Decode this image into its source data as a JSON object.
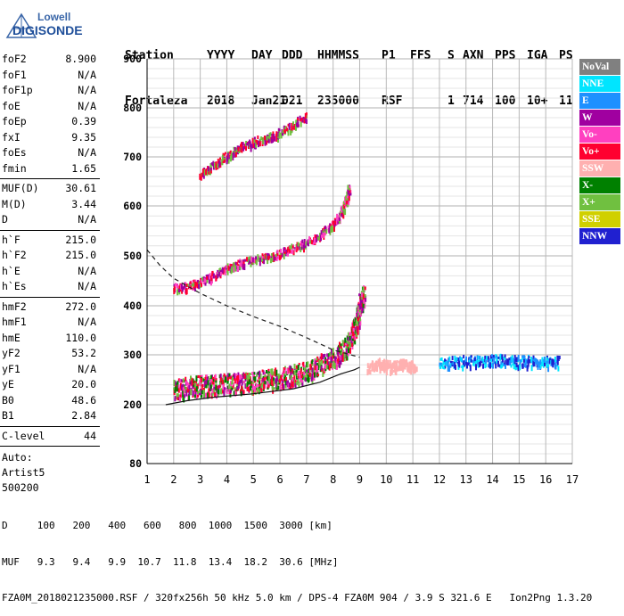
{
  "logo": {
    "line1": "Lowell",
    "line2": "DIGISONDE"
  },
  "header": {
    "row1": [
      "Station",
      "YYYY",
      "DAY",
      "DDD",
      "HHMMSS",
      "P1",
      "FFS",
      "S",
      "AXN",
      "PPS",
      "IGA",
      "PS"
    ],
    "row2": [
      "Fortaleza",
      "2018",
      "Jan21",
      "021",
      "235000",
      "RSF",
      "",
      "1",
      "714",
      "100",
      "10+",
      "11"
    ]
  },
  "params_group1": [
    {
      "label": "foF2",
      "value": "8.900"
    },
    {
      "label": "foF1",
      "value": "N/A"
    },
    {
      "label": "foF1p",
      "value": "N/A"
    },
    {
      "label": "foE",
      "value": "N/A"
    },
    {
      "label": "foEp",
      "value": "0.39"
    },
    {
      "label": "fxI",
      "value": "9.35"
    },
    {
      "label": "foEs",
      "value": "N/A"
    },
    {
      "label": "fmin",
      "value": "1.65"
    }
  ],
  "params_group2": [
    {
      "label": "MUF(D)",
      "value": "30.61"
    },
    {
      "label": "M(D)",
      "value": "3.44"
    },
    {
      "label": "D",
      "value": "N/A"
    }
  ],
  "params_group3": [
    {
      "label": "h`F",
      "value": "215.0"
    },
    {
      "label": "h`F2",
      "value": "215.0"
    },
    {
      "label": "h`E",
      "value": "N/A"
    },
    {
      "label": "h`Es",
      "value": "N/A"
    }
  ],
  "params_group4": [
    {
      "label": "hmF2",
      "value": "272.0"
    },
    {
      "label": "hmF1",
      "value": "N/A"
    },
    {
      "label": "hmE",
      "value": "110.0"
    },
    {
      "label": "yF2",
      "value": "53.2"
    },
    {
      "label": "yF1",
      "value": "N/A"
    },
    {
      "label": "yE",
      "value": "20.0"
    },
    {
      "label": "B0",
      "value": "48.6"
    },
    {
      "label": "B1",
      "value": "2.84"
    }
  ],
  "params_group5": [
    {
      "label": "C-level",
      "value": "44"
    }
  ],
  "auto": {
    "line1": "Auto:",
    "line2": "Artist5",
    "line3": "500200"
  },
  "legend": [
    {
      "label": "NoVal",
      "color": "#808080"
    },
    {
      "label": "NNE",
      "color": "#00e5ff"
    },
    {
      "label": "E",
      "color": "#1e90ff"
    },
    {
      "label": "W",
      "color": "#a000a0"
    },
    {
      "label": "Vo-",
      "color": "#ff40c0"
    },
    {
      "label": "Vo+",
      "color": "#ff0030"
    },
    {
      "label": "SSW",
      "color": "#ffb0b0"
    },
    {
      "label": "X-",
      "color": "#008000"
    },
    {
      "label": "X+",
      "color": "#70c040"
    },
    {
      "label": "SSE",
      "color": "#d0d000"
    },
    {
      "label": "NNW",
      "color": "#2020d0"
    }
  ],
  "footer": {
    "line1": "D     100   200   400   600   800  1000  1500  3000 [km]",
    "line2": "MUF   9.3   9.4   9.9  10.7  11.8  13.4  18.2  30.6 [MHz]",
    "line3": "FZA0M_2018021235000.RSF / 320fx256h 50 kHz 5.0 km / DPS-4 FZA0M 904 / 3.9 S 321.6 E   Ion2Png 1.3.20"
  },
  "chart_data": {
    "type": "scatter",
    "xlim": [
      1,
      17
    ],
    "ylim": [
      80,
      900
    ],
    "x_ticks": [
      "1",
      "2",
      "3",
      "4",
      "5",
      "6",
      "7",
      "8",
      "9",
      "10",
      "11",
      "12",
      "13",
      "14",
      "15",
      "16",
      "17"
    ],
    "y_ticks": [
      "80",
      "200",
      "300",
      "400",
      "500",
      "600",
      "700",
      "800",
      "900"
    ],
    "y_tick_values": [
      80,
      200,
      300,
      400,
      500,
      600,
      700,
      800,
      900
    ],
    "grid": true,
    "ionogram_series": [
      {
        "name": "F2 trace",
        "colors": [
          "#ff0030",
          "#ff40c0",
          "#a000a0",
          "#008000",
          "#70c040"
        ],
        "points": [
          [
            2.0,
            232
          ],
          [
            2.5,
            238
          ],
          [
            3.0,
            240
          ],
          [
            3.5,
            242
          ],
          [
            4.0,
            244
          ],
          [
            4.5,
            246
          ],
          [
            5.0,
            248
          ],
          [
            5.5,
            252
          ],
          [
            6.0,
            256
          ],
          [
            6.5,
            262
          ],
          [
            7.0,
            270
          ],
          [
            7.5,
            282
          ],
          [
            8.0,
            295
          ],
          [
            8.4,
            312
          ],
          [
            8.7,
            340
          ],
          [
            8.9,
            375
          ],
          [
            9.0,
            405
          ],
          [
            9.15,
            425
          ]
        ]
      },
      {
        "name": "2nd hop",
        "colors": [
          "#a000a0",
          "#ff40c0",
          "#70c040",
          "#ff0030"
        ],
        "points": [
          [
            2.0,
            438
          ],
          [
            2.5,
            442
          ],
          [
            3.0,
            450
          ],
          [
            3.5,
            465
          ],
          [
            4.0,
            478
          ],
          [
            4.5,
            488
          ],
          [
            5.0,
            495
          ],
          [
            5.5,
            500
          ],
          [
            6.0,
            508
          ],
          [
            6.5,
            518
          ],
          [
            7.0,
            530
          ],
          [
            7.5,
            545
          ],
          [
            8.0,
            565
          ],
          [
            8.3,
            590
          ],
          [
            8.5,
            615
          ],
          [
            8.6,
            640
          ]
        ]
      },
      {
        "name": "3rd hop",
        "colors": [
          "#a000a0",
          "#70c040",
          "#ff0030"
        ],
        "points": [
          [
            3.0,
            668
          ],
          [
            3.5,
            688
          ],
          [
            4.0,
            705
          ],
          [
            4.5,
            722
          ],
          [
            5.0,
            733
          ],
          [
            5.5,
            742
          ],
          [
            6.0,
            752
          ],
          [
            6.5,
            768
          ],
          [
            7.0,
            786
          ]
        ]
      },
      {
        "name": "SSW spread",
        "colors": [
          "#ffb0b0"
        ],
        "points": [
          [
            9.3,
            275
          ],
          [
            9.6,
            285
          ],
          [
            9.9,
            282
          ],
          [
            10.2,
            278
          ],
          [
            10.5,
            284
          ],
          [
            10.8,
            280
          ],
          [
            11.1,
            283
          ]
        ]
      },
      {
        "name": "NNW spread",
        "colors": [
          "#2020d0",
          "#1e90ff",
          "#00e5ff"
        ],
        "points": [
          [
            12.0,
            286
          ],
          [
            12.5,
            288
          ],
          [
            13.0,
            290
          ],
          [
            13.5,
            291
          ],
          [
            14.0,
            292
          ],
          [
            14.5,
            291
          ],
          [
            15.0,
            290
          ],
          [
            15.5,
            289
          ],
          [
            16.0,
            288
          ],
          [
            16.5,
            288
          ]
        ]
      }
    ],
    "true_height_profile": [
      [
        1.7,
        200
      ],
      [
        2.5,
        208
      ],
      [
        3.5,
        215
      ],
      [
        5.0,
        222
      ],
      [
        6.5,
        232
      ],
      [
        7.5,
        245
      ],
      [
        8.3,
        262
      ],
      [
        8.8,
        270
      ],
      [
        9.0,
        275
      ]
    ],
    "muf_curve": [
      [
        1.0,
        512
      ],
      [
        1.5,
        480
      ],
      [
        2.0,
        455
      ],
      [
        3.0,
        425
      ],
      [
        4.0,
        400
      ],
      [
        5.0,
        378
      ],
      [
        6.0,
        358
      ],
      [
        7.0,
        335
      ],
      [
        8.0,
        310
      ],
      [
        9.0,
        295
      ]
    ]
  }
}
